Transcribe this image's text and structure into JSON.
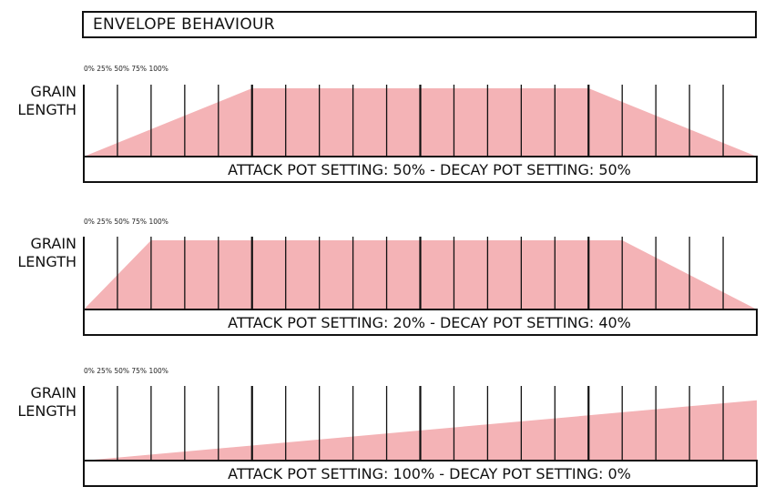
{
  "title": "ENVELOPE BEHAVIOUR",
  "colors": {
    "envelope_fill": "#f4b3b6",
    "line": "#111111"
  },
  "y_label": [
    "GRAIN",
    "LENGTH"
  ],
  "percent_scale": "0% 25% 50% 75% 100%",
  "separator": "-",
  "panels": [
    {
      "attack_text": "ATTACK POT SETTING: 50%",
      "decay_text": "DECAY POT SETTING: 50%",
      "attack_pct": 50,
      "decay_pct": 50
    },
    {
      "attack_text": "ATTACK POT SETTING: 20%",
      "decay_text": "DECAY POT SETTING: 40%",
      "attack_pct": 20,
      "decay_pct": 40
    },
    {
      "attack_text": "ATTACK POT SETTING: 100%",
      "decay_text": "DECAY POT SETTING: 0%",
      "attack_pct": 100,
      "decay_pct": 0
    }
  ]
}
